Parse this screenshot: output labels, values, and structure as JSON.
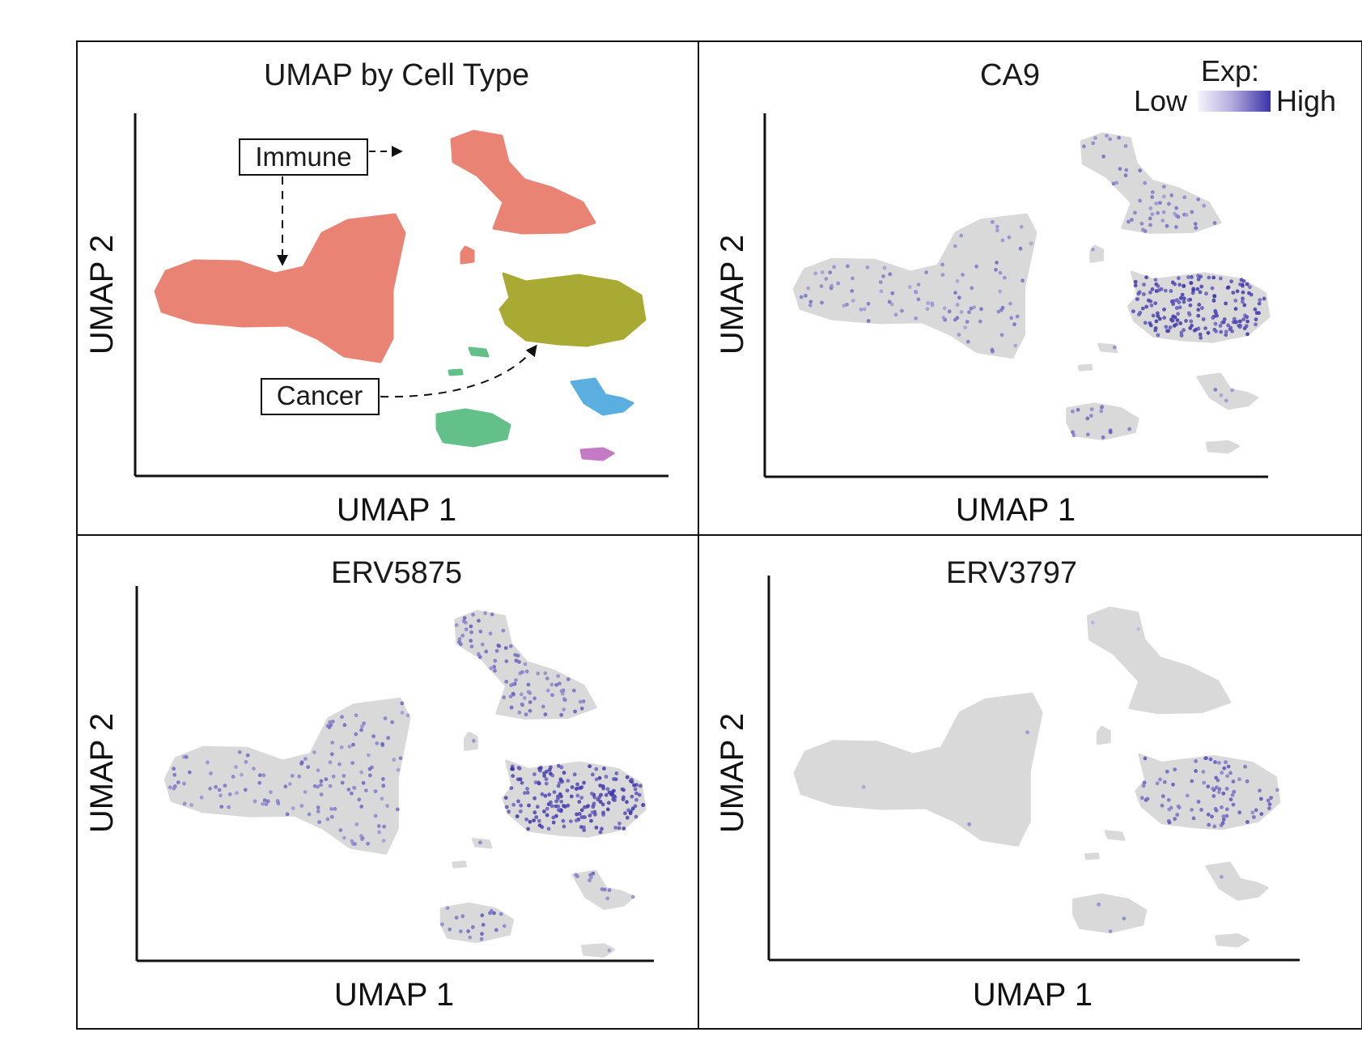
{
  "colors": {
    "immune": "#e98373",
    "cancer": "#a8aa33",
    "cluster_green": "#62c088",
    "cluster_blue": "#5aaee0",
    "cluster_violet": "#c57ac6",
    "background_cell": "#d9d9d9",
    "expression_low": "#ece9f7",
    "expression_high": "#3b33a8"
  },
  "chart_data": [
    {
      "type": "scatter",
      "title": "UMAP by Cell Type",
      "xlabel": "UMAP 1",
      "ylabel": "UMAP 2",
      "grid": false,
      "annotations": [
        {
          "text": "Immune",
          "points_to": [
            "large left cluster",
            "upper right cluster"
          ]
        },
        {
          "text": "Cancer",
          "points_to": [
            "central right cluster"
          ]
        }
      ],
      "series": [
        {
          "name": "Immune",
          "color": "#e98373"
        },
        {
          "name": "Cancer",
          "color": "#a8aa33"
        },
        {
          "color": "#62c088"
        },
        {
          "color": "#5aaee0"
        },
        {
          "color": "#c57ac6"
        }
      ]
    },
    {
      "type": "scatter",
      "title": "CA9",
      "xlabel": "UMAP 1",
      "ylabel": "UMAP 2",
      "grid": false,
      "legend": {
        "title": "Exp:",
        "low_label": "Low",
        "high_label": "High",
        "placement": "top-right"
      },
      "relative_expression": {
        "immune_large": 0.3,
        "immune_upper": 0.35,
        "cancer": 0.85,
        "cluster_green": 0.45,
        "cluster_blue": 0.25,
        "cluster_violet": 0.05
      }
    },
    {
      "type": "scatter",
      "title": "ERV5875",
      "xlabel": "UMAP 1",
      "ylabel": "UMAP 2",
      "grid": false,
      "relative_expression": {
        "immune_large": 0.35,
        "immune_upper": 0.45,
        "cancer": 0.85,
        "cluster_green": 0.5,
        "cluster_blue": 0.4,
        "cluster_violet": 0.3
      }
    },
    {
      "type": "scatter",
      "title": "ERV3797",
      "xlabel": "UMAP 1",
      "ylabel": "UMAP 2",
      "grid": false,
      "relative_expression": {
        "immune_large": 0.02,
        "immune_upper": 0.04,
        "cancer": 0.55,
        "cluster_green": 0.15,
        "cluster_blue": 0.1,
        "cluster_violet": 0.0
      }
    }
  ]
}
